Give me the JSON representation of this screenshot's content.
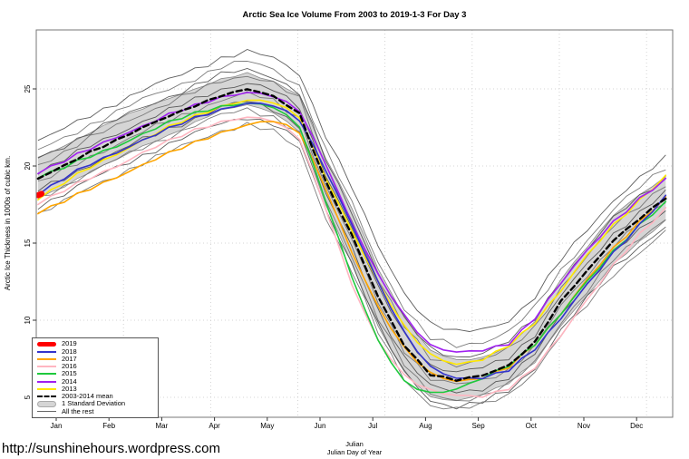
{
  "page": {
    "url_text": "http://sunshinehours.wordpress.com"
  },
  "chart": {
    "title": "Arctic Sea Ice Volume From 2003 to 2019-1-3  For Day 3",
    "y_axis": {
      "label": "Arctic Ice Thickness in 1000s of cubic km.",
      "tick_labels": [
        "5",
        "10",
        "15",
        "20",
        "25"
      ]
    },
    "x_axis": {
      "label_line1": "Julian",
      "label_line2": "Julian Day of Year",
      "month_labels": [
        "Jan",
        "Feb",
        "Mar",
        "Apr",
        "May",
        "Jun",
        "Jul",
        "Aug",
        "Sep",
        "Oct",
        "Nov",
        "Dec"
      ]
    },
    "legend": [
      {
        "label": "2019",
        "color": "#FF0000",
        "type": "thick-line"
      },
      {
        "label": "2018",
        "color": "#3333CC",
        "type": "line"
      },
      {
        "label": "2017",
        "color": "#FFA500",
        "type": "line"
      },
      {
        "label": "2016",
        "color": "#FFB6C1",
        "type": "line"
      },
      {
        "label": "2015",
        "color": "#1FC93D",
        "type": "line"
      },
      {
        "label": "2014",
        "color": "#A020F0",
        "type": "line"
      },
      {
        "label": "2013",
        "color": "#FFE800",
        "type": "line"
      },
      {
        "label": "2003-2014 mean",
        "color": "#000000",
        "type": "dashed-line"
      },
      {
        "label": "1 Standard Deviation",
        "color": "#D5D5D5",
        "type": "band"
      },
      {
        "label": "All the rest",
        "color": "#666666",
        "type": "thin-line"
      }
    ]
  },
  "chart_data": {
    "type": "line",
    "title": "Arctic Sea Ice Volume From 2003 to 2019-1-3  For Day 3",
    "xlabel": "Julian Day of Year",
    "ylabel": "Arctic Ice Thickness in 1000s of cubic km.",
    "xlim": [
      1,
      365
    ],
    "ylim": [
      3.7,
      28.8
    ],
    "y_ticks": [
      5,
      10,
      15,
      20,
      25
    ],
    "x_gridline_days": [
      50,
      100,
      150,
      200,
      250,
      300,
      350
    ],
    "grid": "dotted light-gray",
    "legend_position": "bottom-left",
    "sample_days": [
      1,
      16,
      31,
      46,
      61,
      76,
      91,
      106,
      121,
      136,
      151,
      166,
      181,
      196,
      211,
      226,
      241,
      256,
      271,
      286,
      301,
      316,
      331,
      346,
      361
    ],
    "series": [
      {
        "name": "2019",
        "color": "#FF0000",
        "style": "solid",
        "width": 6.5,
        "days": [
          1,
          3
        ],
        "values": [
          18.1,
          18.2
        ]
      },
      {
        "name": "2018",
        "color": "#3333CC",
        "style": "solid",
        "width": 1.6,
        "values": [
          18.2,
          19.2,
          20.1,
          20.9,
          21.7,
          22.4,
          23.1,
          23.7,
          24.1,
          23.9,
          23.0,
          19.8,
          16.2,
          12.4,
          9.2,
          7.0,
          6.2,
          6.2,
          6.8,
          8.2,
          10.1,
          12.3,
          14.4,
          16.2,
          18.0
        ]
      },
      {
        "name": "2017",
        "color": "#FFA500",
        "style": "solid",
        "width": 1.6,
        "values": [
          17.0,
          17.7,
          18.5,
          19.3,
          20.1,
          20.8,
          21.5,
          22.2,
          22.7,
          22.9,
          22.2,
          18.6,
          14.4,
          10.8,
          8.2,
          6.6,
          6.0,
          6.2,
          7.0,
          8.5,
          10.4,
          12.6,
          14.7,
          16.4,
          17.9
        ]
      },
      {
        "name": "2016",
        "color": "#FFB6C1",
        "style": "solid",
        "width": 1.6,
        "values": [
          17.6,
          18.4,
          19.2,
          20.0,
          20.9,
          21.6,
          22.3,
          22.9,
          23.2,
          22.9,
          21.8,
          17.3,
          12.3,
          8.6,
          6.4,
          5.5,
          5.1,
          5.0,
          5.6,
          7.0,
          9.0,
          11.3,
          13.6,
          15.6,
          17.2
        ]
      },
      {
        "name": "2015",
        "color": "#1FC93D",
        "style": "solid",
        "width": 1.6,
        "values": [
          19.3,
          19.9,
          20.6,
          21.3,
          22.1,
          22.8,
          23.4,
          23.9,
          24.1,
          23.8,
          22.6,
          17.8,
          12.8,
          8.6,
          6.0,
          5.3,
          5.5,
          6.2,
          7.1,
          8.5,
          10.4,
          12.5,
          14.5,
          16.2,
          17.6
        ]
      },
      {
        "name": "2014",
        "color": "#A020F0",
        "style": "solid",
        "width": 1.6,
        "values": [
          19.6,
          20.3,
          21.1,
          21.9,
          22.6,
          23.3,
          23.9,
          24.5,
          24.8,
          24.5,
          23.6,
          20.2,
          16.3,
          12.9,
          10.3,
          8.4,
          7.9,
          8.0,
          8.5,
          10.2,
          12.4,
          14.5,
          16.4,
          17.9,
          19.1
        ]
      },
      {
        "name": "2013",
        "color": "#FFE800",
        "style": "solid",
        "width": 1.6,
        "values": [
          17.9,
          18.9,
          19.9,
          20.8,
          21.7,
          22.5,
          23.2,
          23.9,
          24.3,
          24.1,
          23.2,
          19.3,
          15.8,
          12.4,
          9.6,
          7.8,
          7.1,
          7.4,
          8.4,
          9.9,
          11.9,
          14.2,
          16.2,
          17.8,
          19.3
        ]
      },
      {
        "name": "2003-2014 mean",
        "color": "#000000",
        "style": "dashed",
        "width": 2.4,
        "values": [
          19.2,
          20.0,
          20.9,
          21.7,
          22.5,
          23.2,
          23.9,
          24.6,
          25.0,
          24.5,
          23.4,
          19.0,
          15.5,
          11.5,
          8.4,
          6.5,
          6.1,
          6.4,
          7.1,
          8.6,
          11.2,
          13.2,
          15.2,
          16.6,
          17.9
        ]
      }
    ],
    "band": {
      "name": "1 Standard Deviation",
      "fill": "#D5D5D5",
      "edge": "#8A8A8A",
      "top": [
        20.5,
        21.3,
        22.2,
        23.0,
        23.7,
        24.4,
        25.0,
        25.6,
        26.0,
        25.5,
        24.6,
        20.5,
        17.3,
        13.4,
        10.2,
        8.0,
        7.4,
        7.6,
        8.3,
        9.9,
        12.7,
        14.8,
        16.8,
        18.1,
        19.3
      ],
      "bottom": [
        17.9,
        18.7,
        19.6,
        20.4,
        21.3,
        22.0,
        22.8,
        23.6,
        24.0,
        23.5,
        22.2,
        17.5,
        13.7,
        9.6,
        6.6,
        5.0,
        4.8,
        5.2,
        5.9,
        7.3,
        9.7,
        11.6,
        13.6,
        15.1,
        16.5
      ]
    },
    "rest_lines": {
      "name": "All the rest (2003-2012)",
      "color": "#5A5A5A",
      "lines": [
        [
          21.6,
          22.4,
          23.3,
          24.1,
          24.9,
          25.6,
          26.3,
          27.0,
          27.4,
          27.0,
          26.0,
          22.0,
          18.6,
          14.8,
          11.8,
          9.8,
          9.2,
          9.4,
          10.0,
          11.5,
          13.9,
          15.9,
          17.8,
          19.2,
          20.5
        ],
        [
          21.0,
          21.8,
          22.7,
          23.5,
          24.3,
          25.0,
          25.7,
          26.4,
          26.8,
          26.3,
          25.2,
          21.0,
          17.6,
          13.8,
          10.8,
          8.8,
          8.3,
          8.6,
          9.3,
          10.8,
          13.2,
          15.2,
          17.2,
          18.6,
          19.9
        ],
        [
          20.5,
          21.3,
          22.2,
          23.0,
          23.8,
          24.5,
          25.2,
          25.9,
          26.3,
          25.8,
          24.7,
          20.4,
          17.0,
          13.1,
          10.1,
          8.1,
          7.6,
          7.9,
          8.6,
          10.1,
          12.6,
          14.6,
          16.6,
          18.0,
          19.3
        ],
        [
          20.1,
          20.9,
          21.8,
          22.6,
          23.4,
          24.1,
          24.8,
          25.5,
          25.9,
          25.4,
          24.3,
          20.0,
          16.5,
          12.6,
          9.6,
          7.6,
          7.1,
          7.4,
          8.1,
          9.6,
          12.1,
          14.1,
          16.1,
          17.5,
          18.8
        ],
        [
          19.6,
          20.4,
          21.3,
          22.1,
          22.9,
          23.6,
          24.3,
          25.0,
          25.4,
          24.9,
          23.8,
          19.5,
          16.0,
          12.1,
          9.1,
          7.1,
          6.6,
          6.9,
          7.6,
          9.1,
          11.6,
          13.6,
          15.6,
          17.0,
          18.3
        ],
        [
          18.9,
          19.7,
          20.6,
          21.4,
          22.2,
          22.9,
          23.6,
          24.3,
          24.7,
          24.2,
          23.1,
          18.7,
          15.2,
          11.2,
          8.1,
          6.2,
          5.8,
          6.1,
          6.8,
          8.3,
          10.9,
          12.9,
          14.9,
          16.3,
          17.6
        ],
        [
          18.4,
          19.2,
          20.1,
          20.9,
          21.7,
          22.4,
          23.1,
          23.8,
          24.2,
          23.7,
          22.6,
          18.2,
          14.7,
          10.7,
          7.6,
          5.7,
          5.3,
          5.6,
          6.3,
          7.8,
          10.4,
          12.4,
          14.4,
          15.8,
          17.1
        ],
        [
          17.9,
          18.7,
          19.6,
          20.4,
          21.2,
          21.9,
          22.6,
          23.3,
          23.7,
          23.2,
          22.1,
          17.7,
          14.2,
          10.2,
          7.1,
          5.2,
          4.8,
          5.1,
          5.8,
          7.3,
          9.9,
          11.9,
          13.9,
          15.3,
          16.6
        ],
        [
          17.4,
          18.2,
          19.1,
          19.9,
          20.7,
          21.4,
          22.1,
          22.8,
          23.2,
          22.7,
          21.6,
          17.2,
          13.7,
          9.7,
          6.6,
          4.8,
          4.4,
          4.7,
          5.4,
          6.9,
          9.4,
          11.4,
          13.4,
          14.8,
          16.1
        ],
        [
          16.9,
          17.7,
          18.6,
          19.4,
          20.2,
          20.9,
          21.6,
          22.3,
          22.7,
          22.2,
          21.1,
          16.7,
          13.2,
          9.2,
          6.2,
          4.5,
          4.2,
          4.5,
          5.2,
          6.7,
          9.0,
          11.0,
          13.0,
          14.4,
          15.7
        ]
      ]
    }
  }
}
